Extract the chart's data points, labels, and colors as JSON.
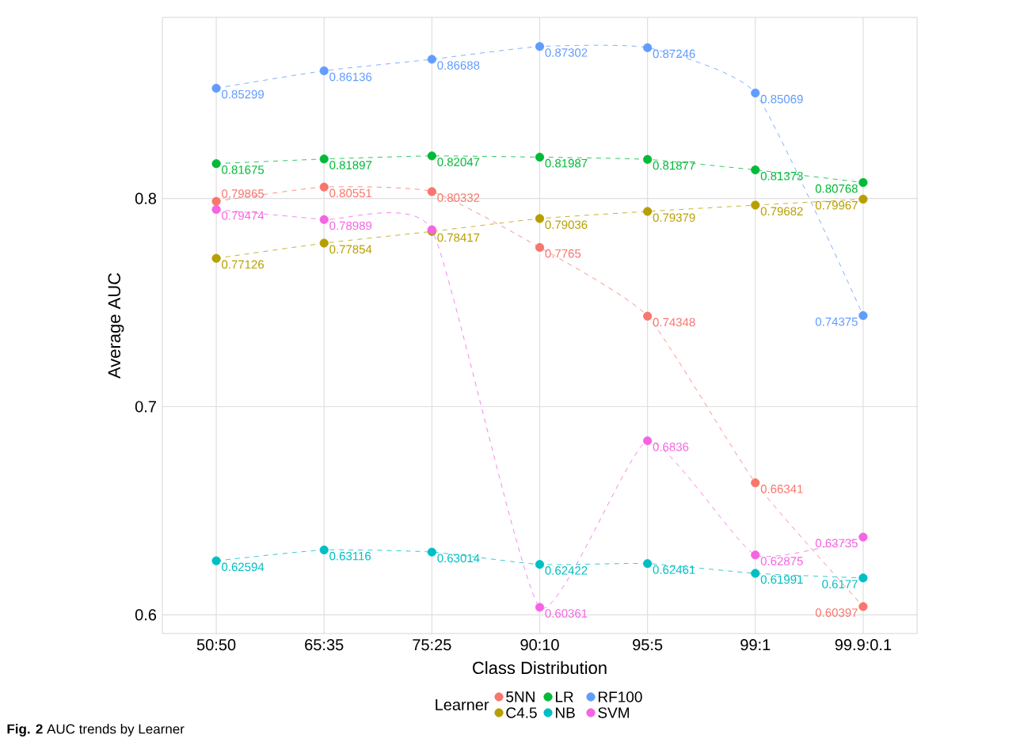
{
  "chart_data": {
    "type": "line",
    "xlabel": "Class Distribution",
    "ylabel": "Average AUC",
    "legend_title": "Learner",
    "categories": [
      "50:50",
      "65:35",
      "75:25",
      "90:10",
      "95:5",
      "99:1",
      "99.9:0.1"
    ],
    "series": [
      {
        "name": "5NN",
        "color": "#f8766d",
        "values": [
          0.79865,
          0.80551,
          0.80332,
          0.7765,
          0.74348,
          0.66341,
          0.60397
        ],
        "value_labels": [
          "0.79865",
          "0.80551",
          "0.80332",
          "0.7765",
          "0.74348",
          "0.66341",
          "0.60397"
        ]
      },
      {
        "name": "C4.5",
        "color": "#b79f00",
        "values": [
          0.77126,
          0.77854,
          0.78417,
          0.79036,
          0.79379,
          0.79682,
          0.79967
        ],
        "value_labels": [
          "0.77126",
          "0.77854",
          "0.78417",
          "0.79036",
          "0.79379",
          "0.79682",
          "0.79967"
        ]
      },
      {
        "name": "LR",
        "color": "#00ba38",
        "values": [
          0.81675,
          0.81897,
          0.82047,
          0.81987,
          0.81877,
          0.81373,
          0.80768
        ],
        "value_labels": [
          "0.81675",
          "0.81897",
          "0.82047",
          "0.81987",
          "0.81877",
          "0.81373",
          "0.80768"
        ]
      },
      {
        "name": "NB",
        "color": "#00bfc4",
        "values": [
          0.62594,
          0.63116,
          0.63014,
          0.62422,
          0.62461,
          0.61991,
          0.6177
        ],
        "value_labels": [
          "0.62594",
          "0.63116",
          "0.63014",
          "0.62422",
          "0.62461",
          "0.61991",
          "0.6177"
        ]
      },
      {
        "name": "RF100",
        "color": "#619cff",
        "values": [
          0.85299,
          0.86136,
          0.86688,
          0.87302,
          0.87246,
          0.85069,
          0.74375
        ],
        "value_labels": [
          "0.85299",
          "0.86136",
          "0.86688",
          "0.87302",
          "0.87246",
          "0.85069",
          "0.74375"
        ]
      },
      {
        "name": "SVM",
        "color": "#f564e3",
        "values": [
          0.79474,
          0.78989,
          0.785,
          0.60361,
          0.6836,
          0.62875,
          0.63735
        ],
        "value_labels": [
          "0.79474",
          "0.78989",
          null,
          "0.60361",
          "0.6836",
          "0.62875",
          "0.63735"
        ]
      }
    ],
    "ylim": [
      0.591,
      0.887
    ],
    "yticks": [
      0.6,
      0.7,
      0.8
    ],
    "grid": true,
    "legend": "bottom",
    "marker": "circle",
    "line_style": "dashed",
    "annotations": [
      "**Fig. 2** AUC trends by Learner"
    ]
  }
}
